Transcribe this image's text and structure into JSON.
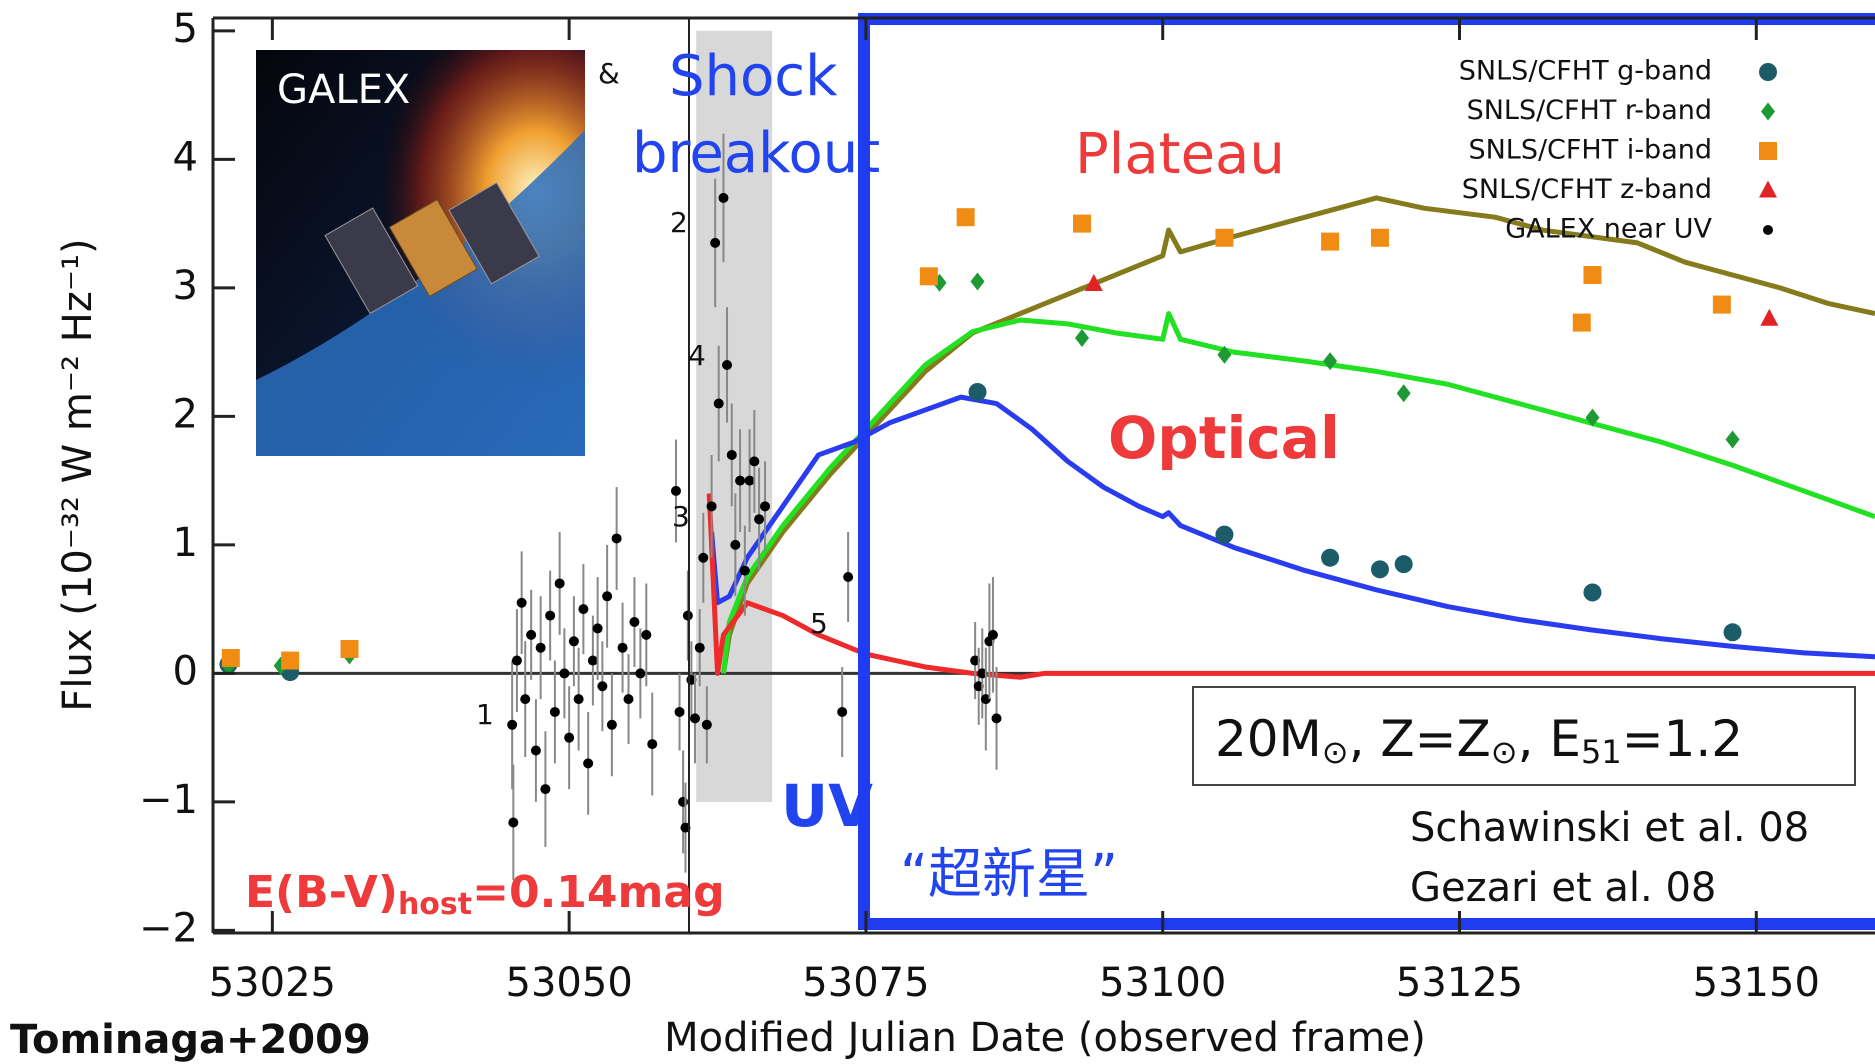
{
  "chart_data": {
    "type": "scatter",
    "x_label": "Modified Julian Date (observed frame)",
    "y_label": "Flux (10⁻³² W m⁻² Hz⁻¹)",
    "xlim": [
      53020,
      53160
    ],
    "ylim": [
      -2.02,
      5.1
    ],
    "xticks": [
      53025,
      53050,
      53075,
      53100,
      53125,
      53150
    ],
    "yticks": [
      {
        "value": -2,
        "label": "−2"
      },
      {
        "value": -1,
        "label": "−1"
      },
      0,
      1,
      2,
      3,
      4,
      5
    ],
    "legend": "upper right",
    "series": [
      {
        "name": "SNLS/CFHT g-band",
        "color": "#1b5c68",
        "marker": "circle",
        "x": [
          53021.3,
          53026.5,
          53084.4,
          53105.2,
          53114.1,
          53118.3,
          53120.3,
          53136.2,
          53148.0
        ],
        "values": [
          0.07,
          0.01,
          2.19,
          1.08,
          0.9,
          0.81,
          0.85,
          0.63,
          0.32
        ]
      },
      {
        "name": "SNLS/CFHT r-band",
        "color": "#1e9a34",
        "marker": "diamond",
        "x": [
          53021.3,
          53025.7,
          53031.5,
          53081.2,
          53084.4,
          53093.2,
          53105.2,
          53114.1,
          53120.3,
          53136.2,
          53148.0
        ],
        "values": [
          0.06,
          0.06,
          0.14,
          3.04,
          3.05,
          2.61,
          2.48,
          2.43,
          2.18,
          1.99,
          1.82
        ]
      },
      {
        "name": "SNLS/CFHT i-band",
        "color": "#f08c14",
        "marker": "square",
        "x": [
          53021.5,
          53026.5,
          53031.5,
          53080.3,
          53083.4,
          53093.2,
          53105.2,
          53114.1,
          53118.3,
          53135.3,
          53136.2,
          53147.1
        ],
        "values": [
          0.12,
          0.1,
          0.19,
          3.09,
          3.55,
          3.5,
          3.39,
          3.36,
          3.39,
          2.73,
          3.1,
          2.87
        ]
      },
      {
        "name": "SNLS/CFHT z-band",
        "color": "#e02424",
        "marker": "triangle",
        "x": [
          53094.2,
          53151.1
        ],
        "values": [
          3.03,
          2.76
        ]
      },
      {
        "name": "GALEX near UV",
        "color": "#000000",
        "marker": "dot",
        "x": [
          53045.2,
          53045.3,
          53045.6,
          53046.0,
          53046.3,
          53046.8,
          53047.2,
          53047.6,
          53048.0,
          53048.4,
          53048.8,
          53049.2,
          53049.6,
          53050.0,
          53050.4,
          53050.8,
          53051.2,
          53051.6,
          53052.0,
          53052.4,
          53052.8,
          53053.2,
          53053.6,
          53054.0,
          53054.5,
          53055.0,
          53055.5,
          53056.0,
          53056.5,
          53057.0,
          53059.0,
          53059.3,
          53059.6,
          53059.8,
          53060.0,
          53060.3,
          53060.6,
          53061.0,
          53061.3,
          53061.6,
          53062.0,
          53062.3,
          53062.6,
          53063.0,
          53063.3,
          53063.7,
          53064.0,
          53064.4,
          53064.8,
          53065.2,
          53065.6,
          53066.0,
          53066.5,
          53073.0,
          53073.5,
          53084.2,
          53084.5,
          53084.8,
          53085.1,
          53085.4,
          53085.7,
          53086.0
        ],
        "values": [
          -0.4,
          -1.16,
          0.1,
          0.55,
          -0.2,
          0.3,
          -0.6,
          0.2,
          -0.9,
          0.45,
          -0.3,
          0.7,
          0.0,
          -0.5,
          0.25,
          -0.2,
          0.5,
          -0.7,
          0.1,
          0.35,
          -0.1,
          0.6,
          -0.4,
          1.05,
          0.2,
          -0.2,
          0.4,
          0.0,
          0.3,
          -0.55,
          1.42,
          -0.3,
          -1.0,
          -1.2,
          0.45,
          -0.05,
          -0.35,
          0.2,
          0.9,
          -0.4,
          1.3,
          3.35,
          2.1,
          3.7,
          2.4,
          1.7,
          1.0,
          1.5,
          0.8,
          1.5,
          1.65,
          1.2,
          1.3,
          -0.3,
          0.75,
          0.1,
          -0.1,
          0.0,
          -0.2,
          0.25,
          0.3,
          -0.35
        ],
        "errors": [
          0.5,
          0.45,
          0.4,
          0.4,
          0.45,
          0.35,
          0.4,
          0.4,
          0.45,
          0.35,
          0.4,
          0.4,
          0.35,
          0.4,
          0.35,
          0.4,
          0.35,
          0.4,
          0.35,
          0.4,
          0.35,
          0.4,
          0.4,
          0.4,
          0.35,
          0.35,
          0.35,
          0.35,
          0.4,
          0.4,
          0.4,
          0.3,
          0.4,
          0.35,
          0.35,
          0.3,
          0.35,
          0.3,
          0.35,
          0.3,
          0.4,
          0.5,
          0.45,
          0.5,
          0.45,
          0.4,
          0.4,
          0.4,
          0.35,
          0.4,
          0.4,
          0.4,
          0.35,
          0.35,
          0.35,
          0.3,
          0.3,
          0.35,
          0.4,
          0.45,
          0.45,
          0.4
        ]
      }
    ],
    "curves": [
      {
        "color": "#857a1c",
        "x": [
          53063.0,
          53063.5,
          53065,
          53068,
          53072,
          53076,
          53080,
          53084,
          53088,
          53092,
          53096,
          53100,
          53100.5,
          53101.5,
          53106,
          53112,
          53118,
          53122,
          53128,
          53132,
          53136,
          53140,
          53144,
          53148,
          53152,
          53156,
          53160
        ],
        "values": [
          0.0,
          0.3,
          0.7,
          1.1,
          1.55,
          1.95,
          2.35,
          2.65,
          2.8,
          2.95,
          3.1,
          3.25,
          3.45,
          3.28,
          3.4,
          3.55,
          3.7,
          3.62,
          3.55,
          3.45,
          3.4,
          3.35,
          3.2,
          3.1,
          3.0,
          2.88,
          2.8
        ]
      },
      {
        "color": "#22e022",
        "x": [
          53063,
          53063.5,
          53065,
          53068,
          53072,
          53076,
          53080,
          53084,
          53088,
          53092,
          53096,
          53100,
          53100.5,
          53101.5,
          53106,
          53112,
          53118,
          53124,
          53130,
          53136,
          53142,
          53148,
          53154,
          53160
        ],
        "values": [
          0.0,
          0.4,
          0.75,
          1.15,
          1.6,
          2.0,
          2.4,
          2.66,
          2.75,
          2.72,
          2.65,
          2.6,
          2.8,
          2.6,
          2.5,
          2.43,
          2.35,
          2.25,
          2.1,
          1.95,
          1.8,
          1.62,
          1.42,
          1.22
        ]
      },
      {
        "color": "#2a3cf0",
        "x": [
          53062.0,
          53062.5,
          53063.5,
          53065,
          53068,
          53071,
          53074,
          53077,
          53080,
          53083,
          53086,
          53089,
          53092,
          53095,
          53098,
          53100,
          53100.5,
          53101.5,
          53106,
          53112,
          53118,
          53124,
          53130,
          53136,
          53142,
          53148,
          53154,
          53160
        ],
        "values": [
          1.1,
          0.55,
          0.6,
          0.9,
          1.3,
          1.7,
          1.8,
          1.95,
          2.05,
          2.15,
          2.1,
          1.9,
          1.65,
          1.45,
          1.3,
          1.22,
          1.25,
          1.15,
          0.98,
          0.8,
          0.65,
          0.52,
          0.42,
          0.34,
          0.27,
          0.21,
          0.16,
          0.13
        ]
      },
      {
        "color": "#ee2a2a",
        "x": [
          53061.8,
          53062.5,
          53063.0,
          53065,
          53068,
          53071,
          53075,
          53080,
          53084,
          53088,
          53090,
          53100,
          53160
        ],
        "values": [
          1.4,
          0.0,
          0.3,
          0.55,
          0.45,
          0.3,
          0.15,
          0.05,
          0.0,
          -0.03,
          0.0,
          0.0,
          0.0
        ]
      }
    ],
    "highlight": {
      "x": [
        53060.7,
        53067.1
      ],
      "y": [
        -1.0,
        5.0
      ]
    },
    "annotations": {
      "shock": [
        "Shock",
        "breakout"
      ],
      "plateau": "Plateau",
      "optical": "Optical",
      "uv": "UV",
      "supernova": "“超新星”",
      "ebv": [
        "E(B-V)",
        "host",
        "=0.14mag"
      ],
      "model": [
        "20M",
        "⊙",
        ", Z=Z",
        "⊙",
        ", E",
        "51",
        "=1.2"
      ],
      "refs": [
        "Schawinski et al. 08",
        "Gezari et al. 08"
      ],
      "amp": "&",
      "epochs": [
        "1",
        "2",
        "3",
        "4",
        "5"
      ]
    }
  },
  "credit": "Tominaga+2009",
  "inset": {
    "label": "GALEX"
  }
}
